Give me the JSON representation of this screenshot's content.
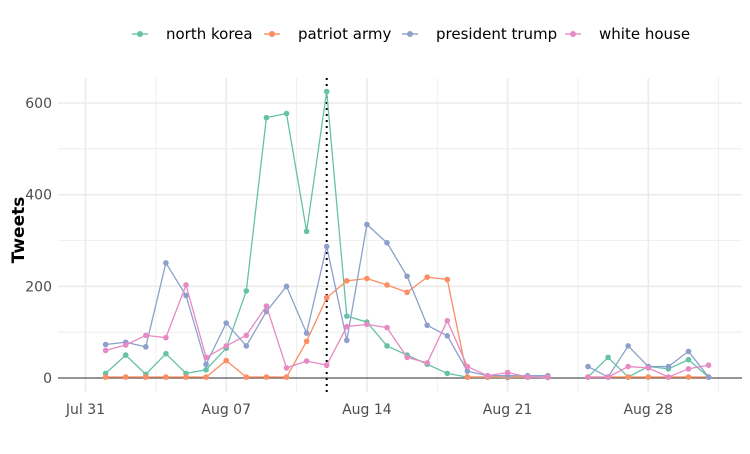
{
  "chart_data": {
    "type": "line",
    "ylabel": "Tweets",
    "xlabel": "",
    "legend_position": "top",
    "grid": true,
    "x_ticks": [
      "Jul 31",
      "Aug 07",
      "Aug 14",
      "Aug 21",
      "Aug 28"
    ],
    "y_ticks": [
      "0",
      "200",
      "400",
      "600"
    ],
    "ylim": [
      0,
      650
    ],
    "reference_line": {
      "date": "Aug 12",
      "style": "dotted"
    },
    "x": [
      "Aug 01",
      "Aug 02",
      "Aug 03",
      "Aug 04",
      "Aug 05",
      "Aug 06",
      "Aug 07",
      "Aug 08",
      "Aug 09",
      "Aug 10",
      "Aug 11",
      "Aug 12",
      "Aug 13",
      "Aug 14",
      "Aug 15",
      "Aug 16",
      "Aug 17",
      "Aug 18",
      "Aug 19",
      "Aug 20",
      "Aug 21",
      "Aug 22",
      "Aug 23",
      "Aug 24",
      "Aug 25",
      "Aug 26",
      "Aug 27",
      "Aug 28",
      "Aug 29",
      "Aug 30",
      "Aug 31"
    ],
    "series": [
      {
        "name": "north korea",
        "color": "#66c2a5",
        "values": [
          10,
          50,
          8,
          53,
          10,
          18,
          65,
          190,
          568,
          577,
          320,
          625,
          135,
          122,
          70,
          50,
          30,
          10,
          2,
          2,
          1,
          2,
          1,
          null,
          2,
          45,
          2,
          25,
          20,
          40,
          2
        ]
      },
      {
        "name": "patriot army",
        "color": "#fc8d62",
        "values": [
          2,
          2,
          2,
          2,
          2,
          2,
          38,
          2,
          2,
          2,
          80,
          175,
          212,
          217,
          203,
          187,
          220,
          215,
          2,
          2,
          2,
          2,
          2,
          null,
          2,
          2,
          2,
          2,
          2,
          2,
          2
        ]
      },
      {
        "name": "president trump",
        "color": "#8da0cb",
        "values": [
          73,
          78,
          68,
          251,
          180,
          30,
          120,
          70,
          145,
          200,
          98,
          287,
          82,
          335,
          295,
          222,
          115,
          92,
          15,
          5,
          5,
          5,
          5,
          null,
          25,
          2,
          70,
          25,
          25,
          58,
          2
        ]
      },
      {
        "name": "white house",
        "color": "#e78ac3",
        "values": [
          60,
          72,
          93,
          88,
          203,
          45,
          70,
          93,
          157,
          22,
          37,
          28,
          112,
          117,
          110,
          45,
          33,
          125,
          25,
          5,
          12,
          2,
          2,
          null,
          2,
          2,
          25,
          22,
          2,
          20,
          28
        ]
      }
    ]
  }
}
